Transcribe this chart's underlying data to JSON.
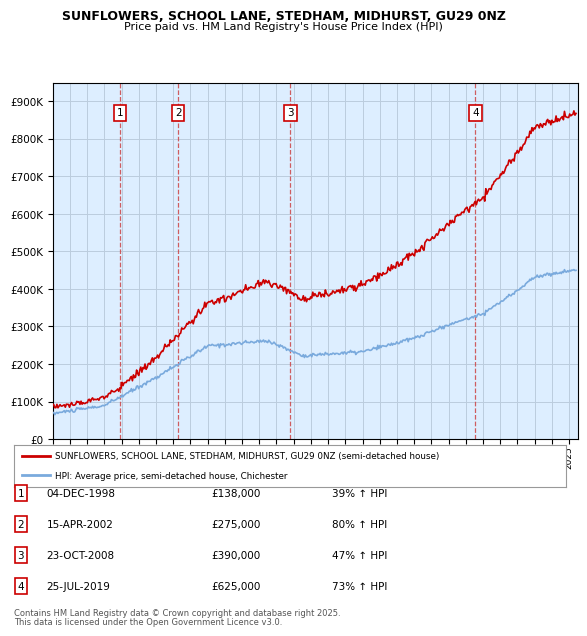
{
  "title1": "SUNFLOWERS, SCHOOL LANE, STEDHAM, MIDHURST, GU29 0NZ",
  "title2": "Price paid vs. HM Land Registry's House Price Index (HPI)",
  "legend_line1": "SUNFLOWERS, SCHOOL LANE, STEDHAM, MIDHURST, GU29 0NZ (semi-detached house)",
  "legend_line2": "HPI: Average price, semi-detached house, Chichester",
  "footer1": "Contains HM Land Registry data © Crown copyright and database right 2025.",
  "footer2": "This data is licensed under the Open Government Licence v3.0.",
  "sales": [
    {
      "num": 1,
      "date": "04-DEC-1998",
      "price": 138000,
      "hpi_pct": "39% ↑ HPI",
      "year": 1998.92
    },
    {
      "num": 2,
      "date": "15-APR-2002",
      "price": 275000,
      "hpi_pct": "80% ↑ HPI",
      "year": 2002.29
    },
    {
      "num": 3,
      "date": "23-OCT-2008",
      "price": 390000,
      "hpi_pct": "47% ↑ HPI",
      "year": 2008.81
    },
    {
      "num": 4,
      "date": "25-JUL-2019",
      "price": 625000,
      "hpi_pct": "73% ↑ HPI",
      "year": 2019.56
    }
  ],
  "hpi_color": "#7aaadd",
  "price_color": "#cc0000",
  "dashed_color": "#cc4444",
  "plot_bg": "#ddeeff",
  "legend_bg": "#ffffff",
  "grid_color": "#bbccdd",
  "ylim": [
    0,
    950000
  ],
  "yticks": [
    0,
    100000,
    200000,
    300000,
    400000,
    500000,
    600000,
    700000,
    800000,
    900000
  ],
  "xlim_start": 1995.0,
  "xlim_end": 2025.5
}
